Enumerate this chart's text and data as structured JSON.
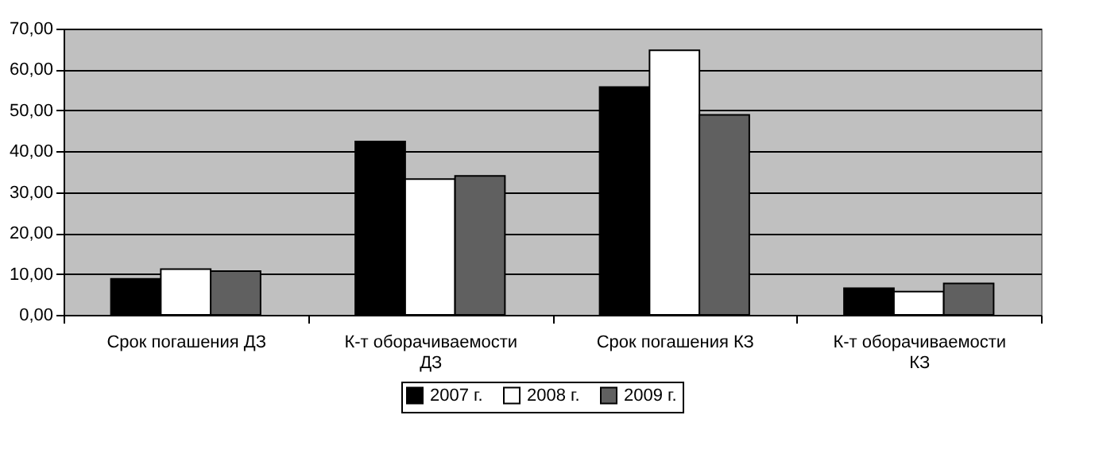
{
  "chart_data": {
    "type": "bar",
    "categories": [
      "Срок погашения ДЗ",
      "К-т оборачиваемости ДЗ",
      "Срок погашения КЗ",
      "К-т оборачиваемости КЗ"
    ],
    "series": [
      {
        "name": "2007 г.",
        "color": "#000000",
        "values": [
          8.8,
          42.4,
          55.7,
          6.5
        ]
      },
      {
        "name": "2008 г.",
        "color": "#ffffff",
        "values": [
          11.2,
          33.2,
          64.7,
          5.7
        ]
      },
      {
        "name": "2009 г.",
        "color": "#606060",
        "values": [
          10.7,
          34.0,
          48.9,
          7.7
        ]
      }
    ],
    "ylim": [
      0,
      70
    ],
    "yticks": [
      {
        "value": 0,
        "label": "0,00"
      },
      {
        "value": 10,
        "label": "10,00"
      },
      {
        "value": 20,
        "label": "20,00"
      },
      {
        "value": 30,
        "label": "30,00"
      },
      {
        "value": 40,
        "label": "40,00"
      },
      {
        "value": 50,
        "label": "50,00"
      },
      {
        "value": 60,
        "label": "60,00"
      },
      {
        "value": 70,
        "label": "70,00"
      }
    ],
    "grid": "y",
    "legend": "bottom"
  }
}
